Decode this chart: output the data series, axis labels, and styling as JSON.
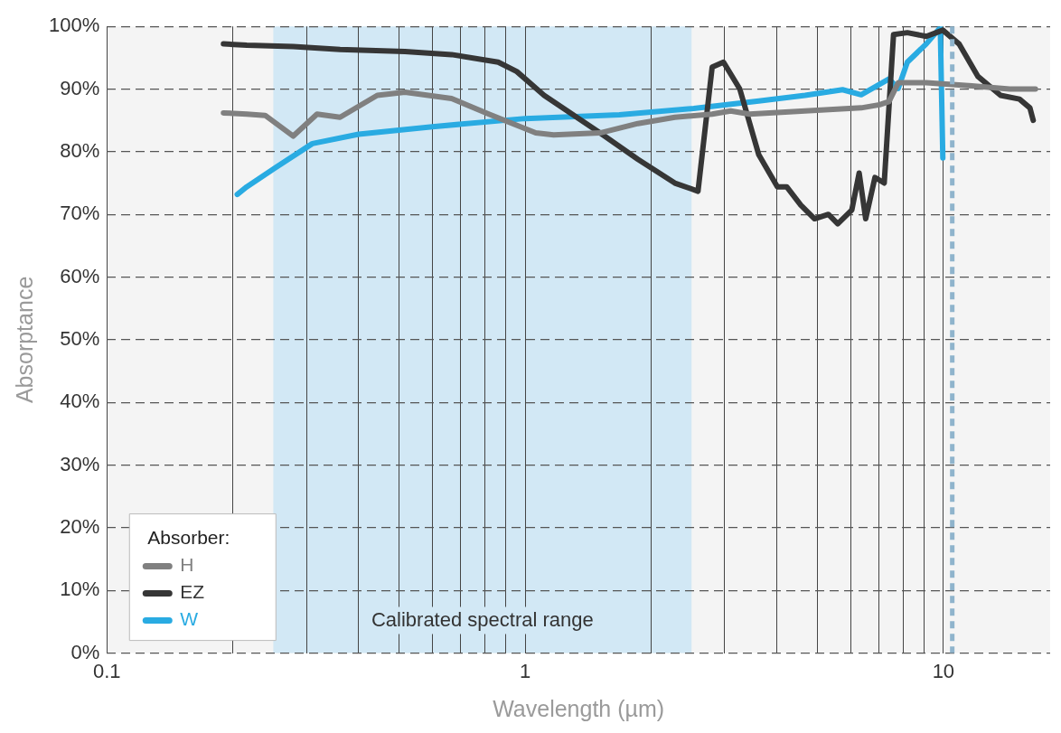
{
  "chart_data": {
    "type": "line",
    "xlabel": "Wavelength (µm)",
    "ylabel": "Absorptance",
    "legend_title": "Absorber:",
    "log": "x",
    "grid": true,
    "legend": "bottom left",
    "marker": "none",
    "line_style": "solid",
    "xlim": [
      0.1,
      18
    ],
    "xticks": [
      0.1,
      {
        "value": 0.2,
        "label": null
      },
      {
        "value": 0.3,
        "label": null
      },
      {
        "value": 0.4,
        "label": null
      },
      {
        "value": 0.5,
        "label": null
      },
      {
        "value": 0.6,
        "label": null
      },
      {
        "value": 0.7,
        "label": null
      },
      {
        "value": 0.8,
        "label": null
      },
      {
        "value": 0.9,
        "label": null
      },
      1,
      {
        "value": 2,
        "label": null
      },
      {
        "value": 3,
        "label": null
      },
      {
        "value": 4,
        "label": null
      },
      {
        "value": 5,
        "label": null
      },
      {
        "value": 6,
        "label": null
      },
      {
        "value": 7,
        "label": null
      },
      {
        "value": 8,
        "label": null
      },
      {
        "value": 9,
        "label": null
      },
      10
    ],
    "ylim": [
      0,
      100
    ],
    "yticks": [
      {
        "value": 0,
        "label": "0%"
      },
      {
        "value": 10,
        "label": "10%"
      },
      {
        "value": 20,
        "label": "20%"
      },
      {
        "value": 30,
        "label": "30%"
      },
      {
        "value": 40,
        "label": "40%"
      },
      {
        "value": 50,
        "label": "50%"
      },
      {
        "value": 60,
        "label": "60%"
      },
      {
        "value": 70,
        "label": "70%"
      },
      {
        "value": 80,
        "label": "80%"
      },
      {
        "value": 90,
        "label": "90%"
      },
      {
        "value": 100,
        "label": "100%"
      }
    ],
    "bands": [
      {
        "axis": "x",
        "from": 0.25,
        "to": 2.5,
        "label": "Calibrated spectral range",
        "color": "#d2e8f5"
      }
    ],
    "ref_lines": [
      {
        "axis": "x",
        "value": 10.5,
        "color": "#8fb4cc",
        "line_style": "dashed"
      }
    ],
    "series": [
      {
        "name": "H",
        "color": "#808080",
        "x": [
          0.19,
          0.216,
          0.239,
          0.279,
          0.318,
          0.361,
          0.443,
          0.516,
          0.667,
          0.819,
          1.06,
          1.17,
          1.51,
          1.86,
          2.28,
          2.8,
          3.1,
          3.44,
          4.67,
          6.36,
          7.04,
          7.41,
          7.8,
          9.1,
          11.7,
          14.4,
          16.6
        ],
        "values": [
          86.2,
          86,
          85.8,
          82.5,
          86,
          85.5,
          89,
          89.5,
          88.5,
          86,
          83,
          82.7,
          83,
          84.5,
          85.5,
          86,
          86.5,
          86,
          86.5,
          87,
          87.5,
          88,
          91,
          91,
          90.5,
          90,
          90
        ]
      },
      {
        "name": "EZ",
        "color": "#363636",
        "x": [
          0.19,
          0.216,
          0.279,
          0.361,
          0.516,
          0.667,
          0.862,
          0.955,
          1.11,
          1.51,
          1.86,
          2.28,
          2.59,
          2.8,
          2.98,
          3.26,
          3.62,
          4.01,
          4.22,
          4.56,
          4.92,
          5.31,
          5.59,
          6.04,
          6.29,
          6.52,
          6.86,
          7.22,
          7.6,
          8.2,
          9.1,
          9.97,
          10.9,
          12.1,
          13.7,
          15.2,
          16.1,
          16.4
        ],
        "values": [
          97.2,
          97,
          96.8,
          96.3,
          96,
          95.5,
          94.3,
          92.8,
          89,
          83,
          78.8,
          75,
          73.7,
          93.5,
          94.3,
          90,
          79.5,
          74.4,
          74.4,
          71.5,
          69.3,
          70,
          68.5,
          70.7,
          76.6,
          69.3,
          75.9,
          75,
          98.7,
          99,
          98.4,
          99.4,
          97.2,
          92,
          89,
          88.4,
          87,
          85
        ]
      },
      {
        "name": "W",
        "color": "#29abe2",
        "x": [
          0.205,
          0.216,
          0.252,
          0.31,
          0.4,
          0.6,
          1.0,
          1.68,
          2.53,
          3.62,
          4.67,
          5.74,
          6.36,
          7.41,
          7.8,
          8.2,
          9.1,
          9.83,
          9.97
        ],
        "values": [
          73.2,
          74.4,
          77.4,
          81.3,
          82.8,
          84,
          85.3,
          85.9,
          86.9,
          88.1,
          89,
          89.9,
          89.1,
          91.6,
          90.1,
          94.3,
          97.2,
          99.8,
          79
        ]
      }
    ]
  }
}
